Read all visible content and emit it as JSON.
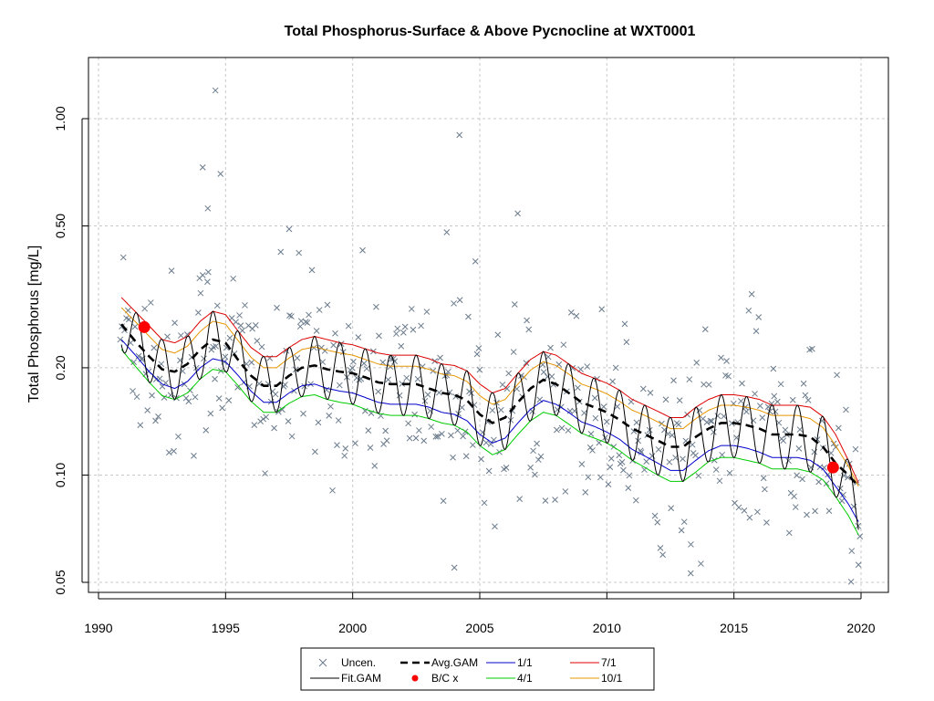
{
  "chart_data": {
    "type": "line",
    "title": "Total Phosphorus-Surface & Above Pycnocline at WXT0001",
    "xlabel": "",
    "ylabel": "Total Phosphorus [mg/L]",
    "xlim": [
      1990,
      2020
    ],
    "ylim": [
      0.046,
      1.45
    ],
    "y_scale": "log",
    "grid": true,
    "x_ticks": [
      1990,
      1995,
      2000,
      2005,
      2010,
      2015,
      2020
    ],
    "x_tick_labels": [
      "1990",
      "1995",
      "2000",
      "2005",
      "2010",
      "2015",
      "2020"
    ],
    "y_ticks": [
      0.05,
      0.1,
      0.2,
      0.5,
      1.0
    ],
    "y_tick_labels": [
      "0.05",
      "0.10",
      "0.20",
      "0.50",
      "1.00"
    ],
    "series": [
      {
        "name": "Avg.GAM",
        "color": "#000000",
        "style": "dashed",
        "x": [
          1990.9,
          1991.5,
          1992.0,
          1992.5,
          1993.0,
          1993.5,
          1994.0,
          1994.5,
          1995.0,
          1995.5,
          1996.0,
          1996.5,
          1997.0,
          1997.5,
          1998.0,
          1998.5,
          1999.0,
          1999.5,
          2000.0,
          2000.5,
          2001.0,
          2001.5,
          2002.0,
          2002.5,
          2003.0,
          2003.5,
          2004.0,
          2004.5,
          2005.0,
          2005.5,
          2006.0,
          2006.5,
          2007.0,
          2007.5,
          2008.0,
          2008.5,
          2009.0,
          2009.5,
          2010.0,
          2010.5,
          2011.0,
          2011.5,
          2012.0,
          2012.5,
          2013.0,
          2013.5,
          2014.0,
          2014.5,
          2015.0,
          2015.5,
          2016.0,
          2016.5,
          2017.0,
          2017.5,
          2018.0,
          2018.5,
          2019.0,
          2019.5,
          2019.9
        ],
        "y": [
          0.265,
          0.235,
          0.215,
          0.198,
          0.195,
          0.205,
          0.225,
          0.24,
          0.235,
          0.21,
          0.19,
          0.178,
          0.178,
          0.19,
          0.2,
          0.203,
          0.198,
          0.195,
          0.193,
          0.188,
          0.182,
          0.18,
          0.18,
          0.18,
          0.175,
          0.17,
          0.168,
          0.162,
          0.148,
          0.14,
          0.145,
          0.16,
          0.175,
          0.185,
          0.18,
          0.17,
          0.16,
          0.155,
          0.15,
          0.143,
          0.135,
          0.13,
          0.125,
          0.12,
          0.12,
          0.128,
          0.135,
          0.14,
          0.14,
          0.138,
          0.135,
          0.13,
          0.13,
          0.13,
          0.128,
          0.12,
          0.108,
          0.1,
          0.093
        ]
      },
      {
        "name": "1/1",
        "color": "#0000cc",
        "style": "solid",
        "x": [
          1990.9,
          1991.5,
          1992.0,
          1992.5,
          1993.0,
          1993.5,
          1994.0,
          1994.5,
          1995.0,
          1995.5,
          1996.0,
          1996.5,
          1997.0,
          1997.5,
          1998.0,
          1998.5,
          1999.0,
          1999.5,
          2000.0,
          2000.5,
          2001.0,
          2001.5,
          2002.0,
          2002.5,
          2003.0,
          2003.5,
          2004.0,
          2004.5,
          2005.0,
          2005.5,
          2006.0,
          2006.5,
          2007.0,
          2007.5,
          2008.0,
          2008.5,
          2009.0,
          2009.5,
          2010.0,
          2010.5,
          2011.0,
          2011.5,
          2012.0,
          2012.5,
          2013.0,
          2013.5,
          2014.0,
          2014.5,
          2015.0,
          2015.5,
          2016.0,
          2016.5,
          2017.0,
          2017.5,
          2018.0,
          2018.5,
          2019.0,
          2019.5,
          2019.9
        ],
        "y": [
          0.24,
          0.215,
          0.195,
          0.18,
          0.175,
          0.183,
          0.2,
          0.212,
          0.208,
          0.19,
          0.172,
          0.16,
          0.16,
          0.17,
          0.178,
          0.18,
          0.175,
          0.172,
          0.17,
          0.165,
          0.16,
          0.158,
          0.158,
          0.158,
          0.155,
          0.15,
          0.148,
          0.142,
          0.13,
          0.123,
          0.127,
          0.14,
          0.153,
          0.162,
          0.158,
          0.15,
          0.141,
          0.137,
          0.132,
          0.126,
          0.118,
          0.113,
          0.108,
          0.103,
          0.103,
          0.11,
          0.117,
          0.121,
          0.121,
          0.119,
          0.116,
          0.112,
          0.112,
          0.112,
          0.11,
          0.104,
          0.093,
          0.083,
          0.074
        ]
      },
      {
        "name": "4/1",
        "color": "#00cc00",
        "style": "solid",
        "x": [
          1990.9,
          1991.5,
          1992.0,
          1992.5,
          1993.0,
          1993.5,
          1994.0,
          1994.5,
          1995.0,
          1995.5,
          1996.0,
          1996.5,
          1997.0,
          1997.5,
          1998.0,
          1998.5,
          1999.0,
          1999.5,
          2000.0,
          2000.5,
          2001.0,
          2001.5,
          2002.0,
          2002.5,
          2003.0,
          2003.5,
          2004.0,
          2004.5,
          2005.0,
          2005.5,
          2006.0,
          2006.5,
          2007.0,
          2007.5,
          2008.0,
          2008.5,
          2009.0,
          2009.5,
          2010.0,
          2010.5,
          2011.0,
          2011.5,
          2012.0,
          2012.5,
          2013.0,
          2013.5,
          2014.0,
          2014.5,
          2015.0,
          2015.5,
          2016.0,
          2016.5,
          2017.0,
          2017.5,
          2018.0,
          2018.5,
          2019.0,
          2019.5,
          2019.9
        ],
        "y": [
          0.225,
          0.2,
          0.182,
          0.167,
          0.163,
          0.17,
          0.186,
          0.198,
          0.195,
          0.178,
          0.161,
          0.15,
          0.15,
          0.159,
          0.166,
          0.168,
          0.163,
          0.16,
          0.158,
          0.153,
          0.149,
          0.147,
          0.147,
          0.147,
          0.144,
          0.14,
          0.138,
          0.132,
          0.121,
          0.114,
          0.118,
          0.13,
          0.142,
          0.15,
          0.147,
          0.139,
          0.131,
          0.127,
          0.123,
          0.117,
          0.11,
          0.105,
          0.1,
          0.096,
          0.096,
          0.102,
          0.109,
          0.112,
          0.112,
          0.11,
          0.108,
          0.104,
          0.104,
          0.104,
          0.102,
          0.097,
          0.087,
          0.077,
          0.068
        ]
      },
      {
        "name": "7/1",
        "color": "#dd0000",
        "style": "solid",
        "x": [
          1990.9,
          1991.5,
          1992.0,
          1992.5,
          1993.0,
          1993.5,
          1994.0,
          1994.5,
          1995.0,
          1995.5,
          1996.0,
          1996.5,
          1997.0,
          1997.5,
          1998.0,
          1998.5,
          1999.0,
          1999.5,
          2000.0,
          2000.5,
          2001.0,
          2001.5,
          2002.0,
          2002.5,
          2003.0,
          2003.5,
          2004.0,
          2004.5,
          2005.0,
          2005.5,
          2006.0,
          2006.5,
          2007.0,
          2007.5,
          2008.0,
          2008.5,
          2009.0,
          2009.5,
          2010.0,
          2010.5,
          2011.0,
          2011.5,
          2012.0,
          2012.5,
          2013.0,
          2013.5,
          2014.0,
          2014.5,
          2015.0,
          2015.5,
          2016.0,
          2016.5,
          2017.0,
          2017.5,
          2018.0,
          2018.5,
          2019.0,
          2019.5,
          2019.9
        ],
        "y": [
          0.315,
          0.285,
          0.262,
          0.24,
          0.235,
          0.245,
          0.27,
          0.288,
          0.282,
          0.253,
          0.228,
          0.215,
          0.215,
          0.228,
          0.24,
          0.245,
          0.24,
          0.235,
          0.232,
          0.226,
          0.22,
          0.217,
          0.217,
          0.217,
          0.212,
          0.205,
          0.203,
          0.196,
          0.18,
          0.17,
          0.175,
          0.193,
          0.211,
          0.222,
          0.217,
          0.205,
          0.193,
          0.187,
          0.181,
          0.173,
          0.163,
          0.157,
          0.151,
          0.145,
          0.145,
          0.155,
          0.163,
          0.168,
          0.168,
          0.166,
          0.163,
          0.157,
          0.157,
          0.157,
          0.155,
          0.146,
          0.13,
          0.11,
          0.095
        ]
      },
      {
        "name": "10/1",
        "color": "#e69500",
        "style": "solid",
        "x": [
          1990.9,
          1991.5,
          1992.0,
          1992.5,
          1993.0,
          1993.5,
          1994.0,
          1994.5,
          1995.0,
          1995.5,
          1996.0,
          1996.5,
          1997.0,
          1997.5,
          1998.0,
          1998.5,
          1999.0,
          1999.5,
          2000.0,
          2000.5,
          2001.0,
          2001.5,
          2002.0,
          2002.5,
          2003.0,
          2003.5,
          2004.0,
          2004.5,
          2005.0,
          2005.5,
          2006.0,
          2006.5,
          2007.0,
          2007.5,
          2008.0,
          2008.5,
          2009.0,
          2009.5,
          2010.0,
          2010.5,
          2011.0,
          2011.5,
          2012.0,
          2012.5,
          2013.0,
          2013.5,
          2014.0,
          2014.5,
          2015.0,
          2015.5,
          2016.0,
          2016.5,
          2017.0,
          2017.5,
          2018.0,
          2018.5,
          2019.0,
          2019.5,
          2019.9
        ],
        "y": [
          0.295,
          0.267,
          0.245,
          0.225,
          0.22,
          0.23,
          0.253,
          0.27,
          0.265,
          0.238,
          0.214,
          0.2,
          0.2,
          0.213,
          0.225,
          0.229,
          0.224,
          0.22,
          0.217,
          0.211,
          0.205,
          0.202,
          0.202,
          0.202,
          0.198,
          0.192,
          0.19,
          0.183,
          0.167,
          0.158,
          0.163,
          0.18,
          0.197,
          0.208,
          0.203,
          0.192,
          0.18,
          0.175,
          0.169,
          0.161,
          0.152,
          0.147,
          0.141,
          0.135,
          0.135,
          0.144,
          0.152,
          0.157,
          0.157,
          0.155,
          0.152,
          0.147,
          0.147,
          0.147,
          0.144,
          0.136,
          0.121,
          0.106,
          0.093
        ]
      }
    ],
    "fit_gam": {
      "name": "Fit.GAM",
      "color": "#000000",
      "style": "solid",
      "description": "seasonal GAM fit oscillating between the 4/1 and 7/1 curves, peaking in summer and dipping in spring each year"
    },
    "bc_points": {
      "name": "B/C x",
      "color": "#ff0000",
      "x": [
        1991.8,
        2018.9
      ],
      "y": [
        0.26,
        0.105
      ]
    },
    "uncensored": {
      "name": "Uncen.",
      "color": "#6b7b8c",
      "marker": "x"
    },
    "legend": {
      "position": "bottom-center",
      "entries": [
        {
          "label": "Uncen.",
          "kind": "x",
          "color": "#6b7b8c"
        },
        {
          "label": "Fit.GAM",
          "kind": "line",
          "color": "#000000"
        },
        {
          "label": "Avg.GAM",
          "kind": "dash",
          "color": "#000000"
        },
        {
          "label": "B/C x",
          "kind": "dot",
          "color": "#ff0000"
        },
        {
          "label": "1/1",
          "kind": "line",
          "color": "#0000cc"
        },
        {
          "label": "4/1",
          "kind": "line",
          "color": "#00cc00"
        },
        {
          "label": "7/1",
          "kind": "line",
          "color": "#dd0000"
        },
        {
          "label": "10/1",
          "kind": "line",
          "color": "#e69500"
        }
      ]
    }
  }
}
